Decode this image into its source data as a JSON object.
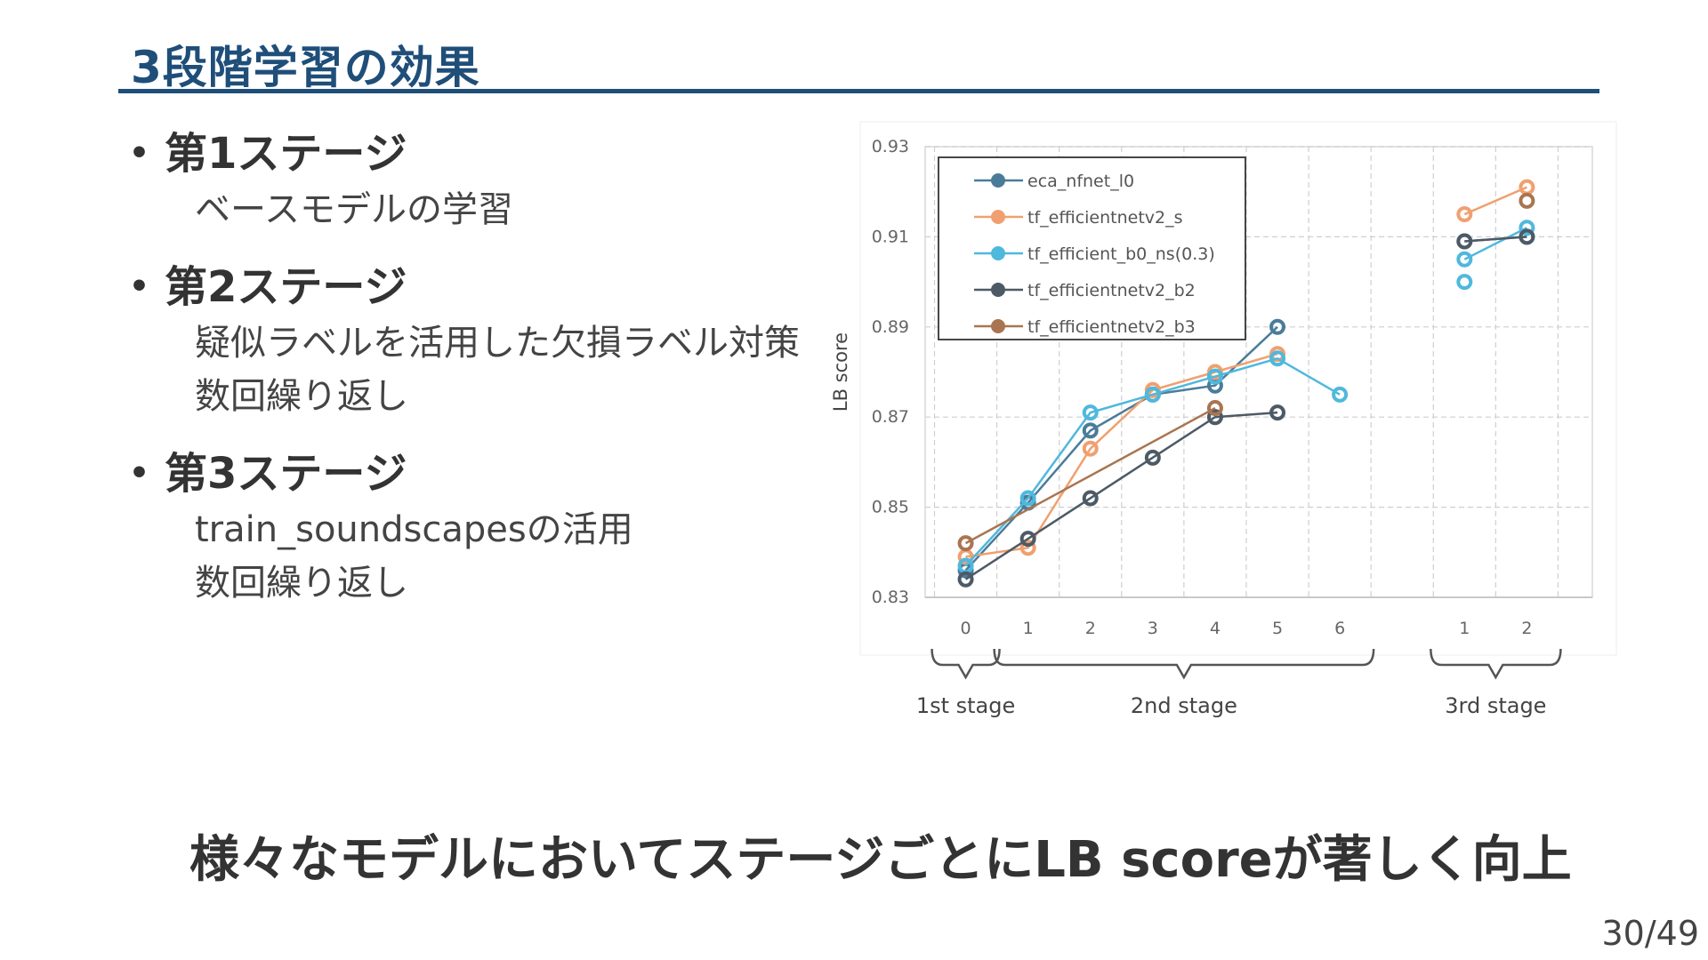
{
  "slide": {
    "title": "3段階学習の効果",
    "page_number": "30/49",
    "conclusion": "様々なモデルにおいてステージごとにLB scoreが著しく向上",
    "bullets": [
      {
        "label": "第1ステージ",
        "subs": [
          "ベースモデルの学習"
        ]
      },
      {
        "label": "第2ステージ",
        "subs": [
          "疑似ラベルを活用した欠損ラベル対策",
          "数回繰り返し"
        ]
      },
      {
        "label": "第3ステージ",
        "subs": [
          "train_soundscapesの活用",
          "数回繰り返し"
        ]
      }
    ],
    "bullet_glyph": "•",
    "colors": {
      "title": "#1f4e79",
      "text": "#333333"
    }
  },
  "chart_data": {
    "type": "line",
    "ylabel": "LB score",
    "ylim": [
      0.83,
      0.93
    ],
    "yticks": [
      0.83,
      0.85,
      0.87,
      0.89,
      0.91,
      0.93
    ],
    "yticklabels": [
      "0.83",
      "0.85",
      "0.87",
      "0.89",
      "0.91",
      "0.93"
    ],
    "xticklabels": [
      "0",
      "1",
      "2",
      "3",
      "4",
      "5",
      "6",
      "1",
      "2"
    ],
    "x_positions": [
      0,
      1,
      2,
      3,
      4,
      5,
      6,
      8,
      9
    ],
    "grid": true,
    "legend_position": "top-left",
    "stages": [
      {
        "label": "1st stage",
        "from": 0,
        "to": 0
      },
      {
        "label": "2nd stage",
        "from": 1,
        "to": 6
      },
      {
        "label": "3rd stage",
        "from": 8,
        "to": 9
      }
    ],
    "series": [
      {
        "name": "eca_nfnet_l0",
        "color": "#4a7c9a",
        "segments": [
          [
            [
              0,
              0.836
            ],
            [
              1,
              0.851
            ],
            [
              2,
              0.867
            ],
            [
              3,
              0.875
            ],
            [
              4,
              0.877
            ],
            [
              5,
              0.89
            ]
          ],
          [
            [
              8,
              0.909
            ],
            [
              9,
              0.91
            ]
          ]
        ]
      },
      {
        "name": "tf_efficientnetv2_s",
        "color": "#f0a070",
        "segments": [
          [
            [
              0,
              0.839
            ],
            [
              1,
              0.841
            ],
            [
              2,
              0.863
            ],
            [
              3,
              0.876
            ],
            [
              4,
              0.88
            ],
            [
              5,
              0.884
            ]
          ],
          [
            [
              8,
              0.915
            ],
            [
              9,
              0.921
            ]
          ]
        ]
      },
      {
        "name": "tf_efficient_b0_ns(0.3)",
        "color": "#4fb8dd",
        "segments": [
          [
            [
              0,
              0.837
            ],
            [
              1,
              0.852
            ],
            [
              2,
              0.871
            ],
            [
              3,
              0.875
            ],
            [
              4,
              0.879
            ],
            [
              5,
              0.883
            ],
            [
              6,
              0.875
            ]
          ],
          [
            [
              8,
              0.905
            ],
            [
              9,
              0.912
            ]
          ]
        ],
        "extra_points": [
          [
            8,
            0.9
          ]
        ]
      },
      {
        "name": "tf_efficientnetv2_b2",
        "color": "#4d5a66",
        "segments": [
          [
            [
              0,
              0.834
            ],
            [
              1,
              0.843
            ],
            [
              2,
              0.852
            ],
            [
              3,
              0.861
            ],
            [
              4,
              0.87
            ],
            [
              5,
              0.871
            ]
          ],
          [
            [
              8,
              0.909
            ],
            [
              9,
              0.91
            ]
          ]
        ]
      },
      {
        "name": "tf_efficientnetv2_b3",
        "color": "#a97550",
        "segments": [
          [
            [
              0,
              0.842
            ],
            [
              4,
              0.872
            ]
          ]
        ],
        "extra_points": [
          [
            9,
            0.918
          ]
        ]
      }
    ]
  }
}
